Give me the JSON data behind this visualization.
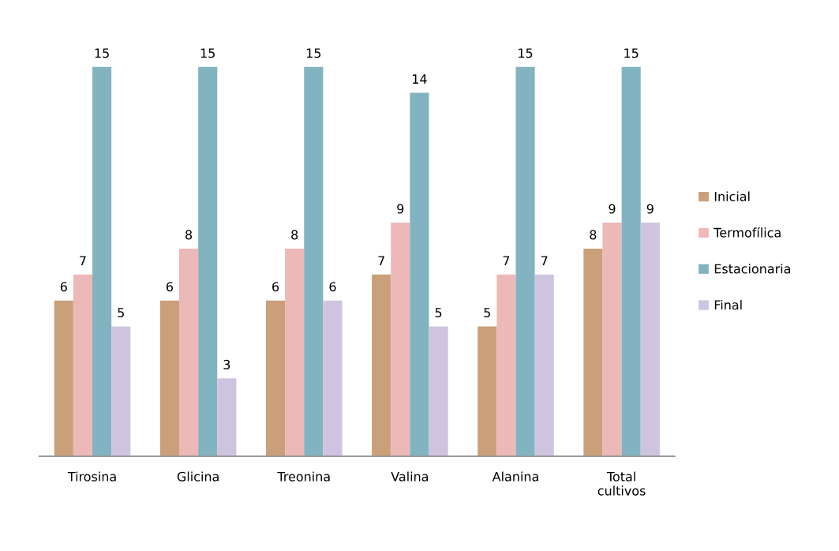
{
  "chart_data": {
    "type": "bar",
    "categories": [
      "Tirosina",
      "Glicina",
      "Treonina",
      "Valina",
      "Alanina",
      "Total\ncultivos"
    ],
    "series": [
      {
        "name": "Inicial",
        "color": "#c9a07a",
        "values": [
          6,
          6,
          6,
          7,
          5,
          8
        ]
      },
      {
        "name": "Termofílica",
        "color": "#edb8b8",
        "values": [
          7,
          8,
          8,
          9,
          7,
          9
        ]
      },
      {
        "name": "Estacionaria",
        "color": "#82b3c0",
        "values": [
          15,
          15,
          15,
          14,
          15,
          15
        ]
      },
      {
        "name": "Final",
        "color": "#cfc4e0",
        "values": [
          5,
          3,
          6,
          5,
          7,
          9
        ]
      }
    ],
    "data_labels": true,
    "legend": "right",
    "tick_labels": "x"
  }
}
